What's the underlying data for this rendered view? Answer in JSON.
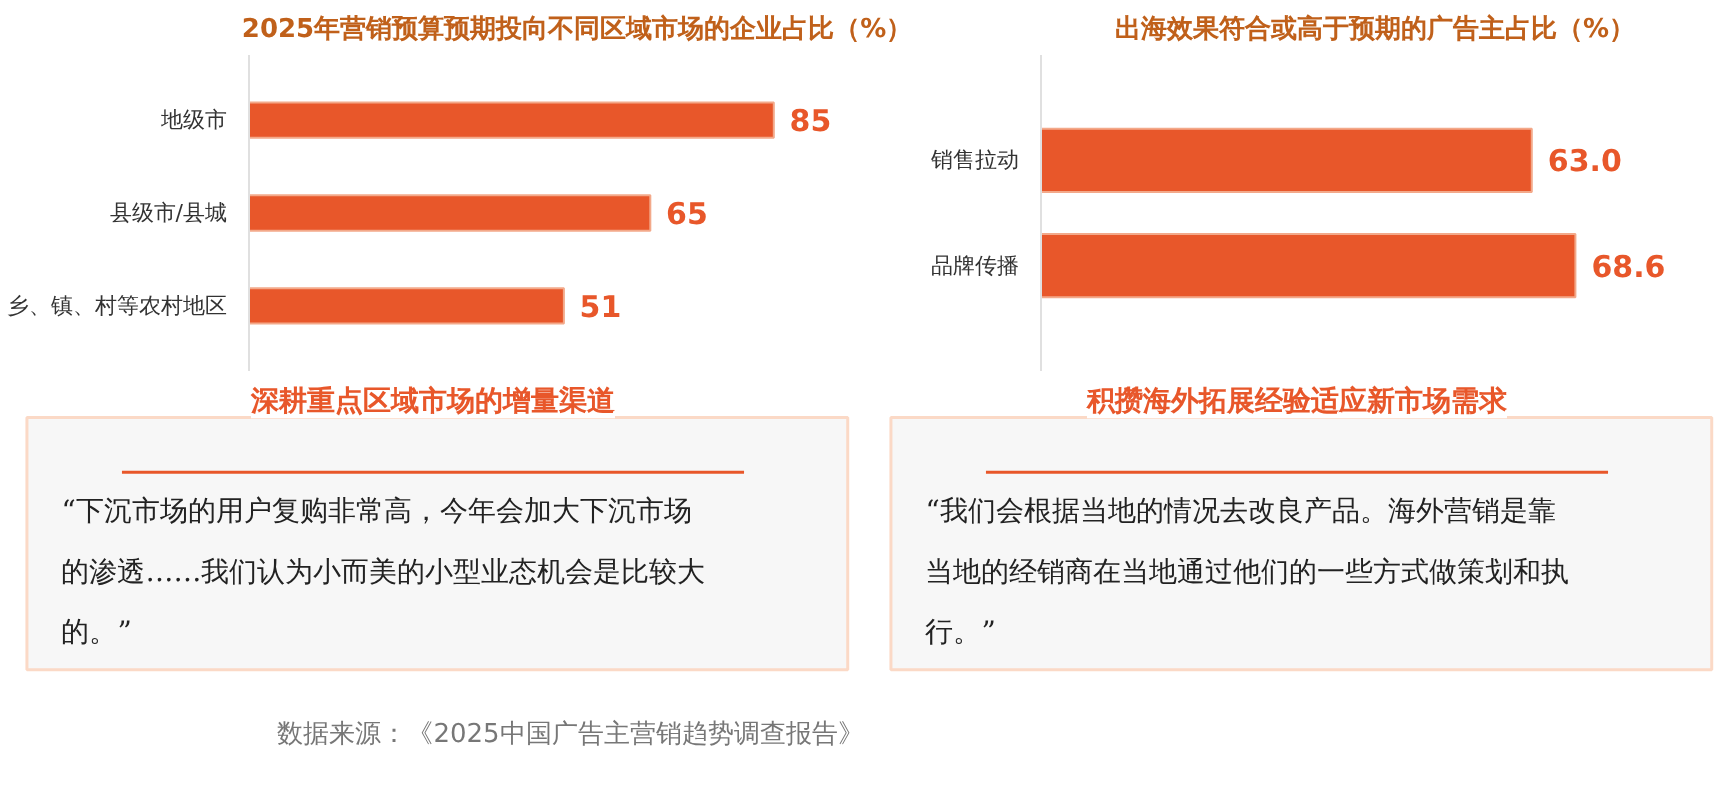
{
  "chart_data": [
    {
      "type": "bar",
      "orientation": "horizontal",
      "title": "2025年营销预算预期投向不同区域市场的企业占比（%）",
      "categories": [
        "地级市",
        "县级市/县城",
        "乡、镇、村等农村地区"
      ],
      "values": [
        85,
        65,
        51
      ],
      "color": "#e8572a",
      "data_labels": true,
      "grid": false
    },
    {
      "type": "bar",
      "orientation": "horizontal",
      "title": "出海效果符合或高于预期的广告主占比（%）",
      "categories": [
        "销售拉动",
        "品牌传播"
      ],
      "values": [
        63.0,
        68.6
      ],
      "value_labels": [
        "63.0",
        "68.6"
      ],
      "color": "#e8572a",
      "grid": false
    },
    {
      "type": "other",
      "title": "深耕重点区域市场的增量渠道",
      "annotations": [
        "“下沉市场的用户复购非常高，今年会加大下沉市场的渗透……我们认为小而美的小型业态机会是比较大的。”"
      ]
    },
    {
      "type": "other",
      "title": "积攒海外拓展经验适应新市场需求",
      "annotations": [
        "“我们会根据当地的情况去改良产品。海外营销是靠当地的经销商在当地通过他们的一些方式做策划和执行。”"
      ]
    },
    {
      "type": "other",
      "annotations": [
        "数据来源：《2025中国广告主营销趋势调查报告》"
      ]
    }
  ]
}
